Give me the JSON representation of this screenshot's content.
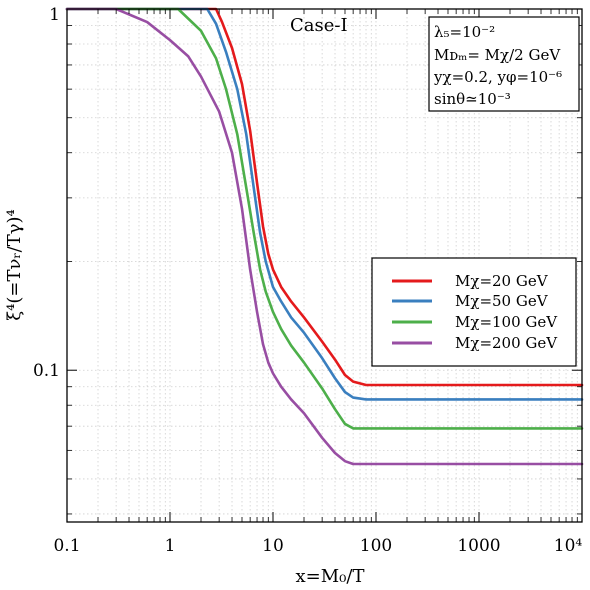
{
  "chart_data": {
    "type": "line",
    "x_scale": "log",
    "y_scale": "log",
    "xlim": [
      0.1,
      10000
    ],
    "ylim": [
      0.038,
      1
    ],
    "grid": true,
    "legend_position": "right-middle",
    "xlabel": "x=M₀/T",
    "ylabel": "ξ⁴(=Tνᵣ/Tγ)⁴",
    "x_tick_labels": [
      "0.1",
      "1",
      "10",
      "100",
      "1000",
      "10⁴"
    ],
    "y_tick_labels": [
      "0.1",
      "1"
    ],
    "annotation": "Case-I",
    "parameters": [
      "λ₅=10⁻²",
      "Mᴅₘ= Mχ/2 GeV",
      "yχ=0.2, yφ=10⁻⁶",
      "sinθ≃10⁻³"
    ],
    "series": [
      {
        "name": "Mχ=20 GeV",
        "color": "#e41a1c",
        "x": [
          0.1,
          2.8,
          3.2,
          4,
          5,
          6,
          7,
          8,
          9,
          10,
          12,
          15,
          20,
          30,
          40,
          50,
          60,
          80,
          100,
          10000
        ],
        "y": [
          1,
          1,
          0.92,
          0.78,
          0.62,
          0.46,
          0.33,
          0.25,
          0.21,
          0.19,
          0.17,
          0.155,
          0.14,
          0.12,
          0.107,
          0.097,
          0.093,
          0.091,
          0.091,
          0.091
        ]
      },
      {
        "name": "Mχ=50 GeV",
        "color": "#3a7fbf",
        "x": [
          0.1,
          2.3,
          2.8,
          3.5,
          4.5,
          5.5,
          6.5,
          7.5,
          8.5,
          10,
          12,
          15,
          20,
          30,
          40,
          50,
          60,
          80,
          100,
          10000
        ],
        "y": [
          1,
          1,
          0.91,
          0.76,
          0.6,
          0.45,
          0.32,
          0.24,
          0.2,
          0.17,
          0.155,
          0.14,
          0.127,
          0.108,
          0.095,
          0.087,
          0.084,
          0.083,
          0.083,
          0.083
        ]
      },
      {
        "name": "Mχ=100 GeV",
        "color": "#4daf4a",
        "x": [
          0.1,
          1.2,
          2,
          2.8,
          3.5,
          4.5,
          5.5,
          6.5,
          7.5,
          8.5,
          10,
          12,
          15,
          20,
          30,
          40,
          50,
          60,
          80,
          100,
          10000
        ],
        "y": [
          1,
          1,
          0.87,
          0.73,
          0.6,
          0.45,
          0.32,
          0.24,
          0.19,
          0.165,
          0.145,
          0.13,
          0.117,
          0.105,
          0.089,
          0.078,
          0.071,
          0.069,
          0.069,
          0.069,
          0.069
        ]
      },
      {
        "name": "Mχ=200 GeV",
        "color": "#984ea3",
        "x": [
          0.1,
          0.3,
          0.6,
          1,
          1.5,
          2,
          3,
          4,
          5,
          6,
          7,
          8,
          9,
          10,
          12,
          15,
          20,
          30,
          40,
          50,
          60,
          80,
          100,
          10000
        ],
        "y": [
          1,
          1,
          0.92,
          0.82,
          0.74,
          0.65,
          0.52,
          0.4,
          0.28,
          0.19,
          0.145,
          0.118,
          0.105,
          0.098,
          0.09,
          0.083,
          0.076,
          0.065,
          0.059,
          0.056,
          0.055,
          0.055,
          0.055,
          0.055
        ]
      }
    ]
  }
}
